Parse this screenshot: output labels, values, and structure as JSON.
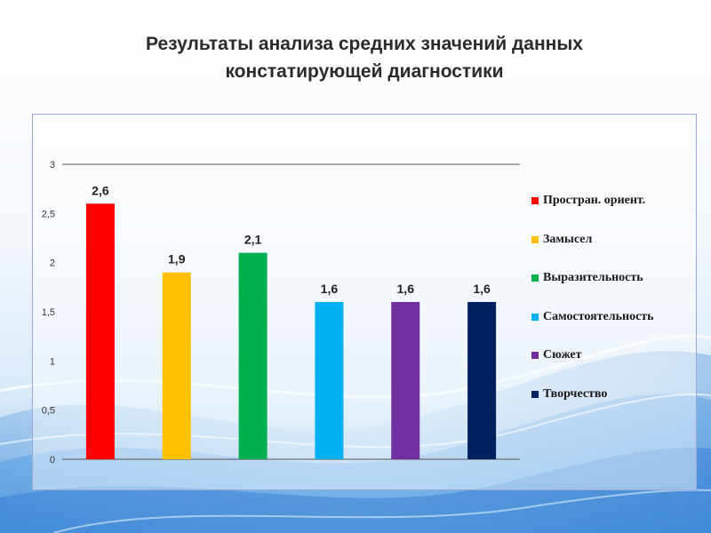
{
  "title_lines": [
    "Результаты анализа средних значений данных",
    "констатирующей диагностики"
  ],
  "chart_data": {
    "type": "bar",
    "title": "Результаты анализа средних значений данных констатирующей диагностики",
    "categories": [
      "Простран. ориент.",
      "Замысел",
      "Выразительность",
      "Самостоятельность",
      "Сюжет",
      "Творчество"
    ],
    "values": [
      2.6,
      1.9,
      2.1,
      1.6,
      1.6,
      1.6
    ],
    "data_labels": [
      "2,6",
      "1,9",
      "2,1",
      "1,6",
      "1,6",
      "1,6"
    ],
    "colors": [
      "#ff0000",
      "#ffc000",
      "#00b050",
      "#00b0f0",
      "#7030a0",
      "#002060"
    ],
    "ylim": [
      0,
      3
    ],
    "yticks": [
      0,
      0.5,
      1,
      1.5,
      2,
      2.5,
      3
    ],
    "ytick_labels": [
      "0",
      "0,5",
      "1",
      "1,5",
      "2",
      "2,5",
      "3"
    ],
    "xlabel": "",
    "ylabel": "",
    "legend": "right",
    "grid": false
  }
}
